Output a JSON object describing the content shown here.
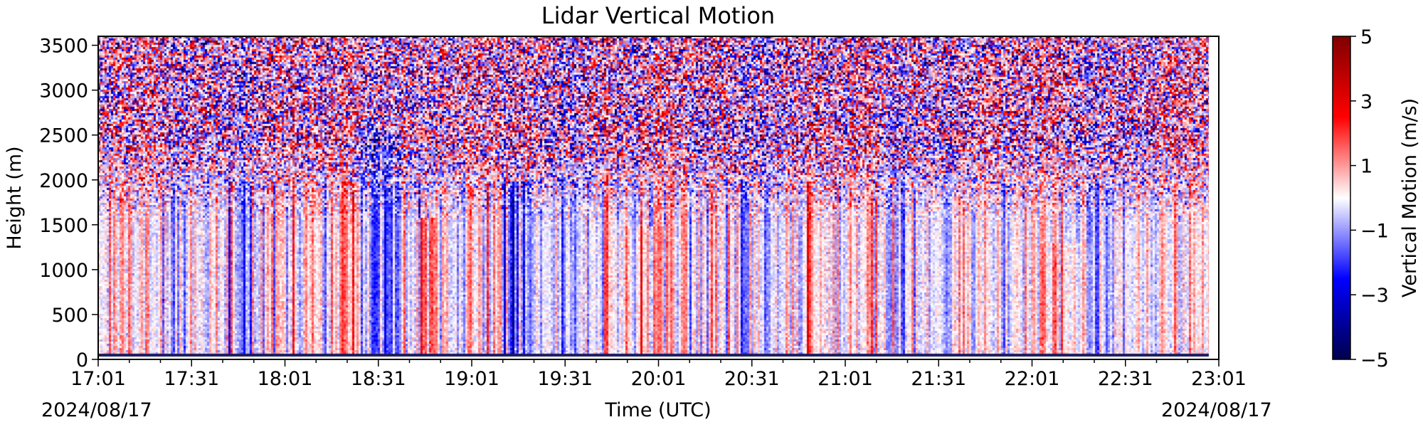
{
  "chart_data": {
    "type": "heatmap",
    "title": "Lidar Vertical Motion",
    "xlabel": "Time (UTC)",
    "ylabel": "Height (m)",
    "x_ticks": [
      "17:01",
      "17:31",
      "18:01",
      "18:31",
      "19:01",
      "19:31",
      "20:01",
      "20:31",
      "21:01",
      "21:31",
      "22:01",
      "22:31",
      "23:01"
    ],
    "x_start_date": "2024/08/17",
    "x_end_date": "2024/08/17",
    "xlim": [
      "17:01",
      "23:01"
    ],
    "y_ticks": [
      0,
      500,
      1000,
      1500,
      2000,
      2500,
      3000,
      3500
    ],
    "ylim": [
      0,
      3600
    ],
    "colorbar": {
      "label": "Vertical Motion (m/s)",
      "ticks": [
        "5",
        "3",
        "1",
        "−1",
        "−3",
        "−5"
      ],
      "tick_values": [
        5,
        3,
        1,
        -1,
        -3,
        -5
      ],
      "range": [
        -5,
        5
      ],
      "colormap": "seismic",
      "colors": [
        "#00004c",
        "#0000ff",
        "#ffffff",
        "#ff0000",
        "#800000"
      ]
    },
    "features": [
      {
        "time_start": "18:21",
        "time_end": "18:41",
        "height_top": 2600,
        "mean_w": -2.0
      },
      {
        "time_start": "18:41",
        "time_end": "18:51",
        "height_top": 1600,
        "mean_w": 2.5
      },
      {
        "time_start": "19:11",
        "time_end": "19:21",
        "height_top": 2000,
        "mean_w": -3.5
      },
      {
        "time_start": "19:46",
        "time_end": "20:06",
        "height_top": 1500,
        "mean_w": 1.0
      },
      {
        "time_start": "22:01",
        "time_end": "22:21",
        "height_top": 1300,
        "mean_w": 0.8
      }
    ]
  }
}
